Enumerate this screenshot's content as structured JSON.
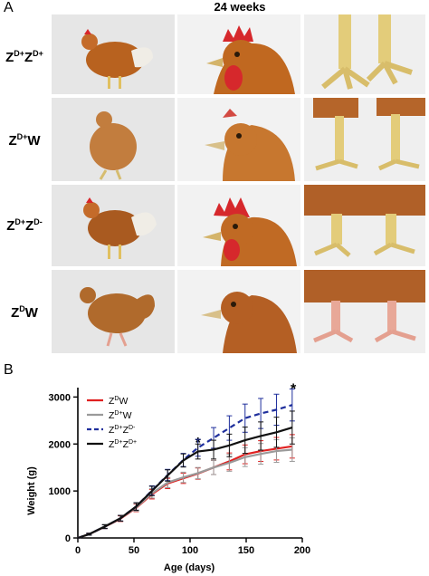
{
  "panel_a": {
    "letter": "A",
    "column_header": "24 weeks",
    "rows": [
      {
        "base": "Z",
        "sup1": "D+",
        "base2": "Z",
        "sup2": "D+"
      },
      {
        "base": "Z",
        "sup1": "D+",
        "base2": "W",
        "sup2": ""
      },
      {
        "base": "Z",
        "sup1": "D+",
        "base2": "Z",
        "sup2": "D-"
      },
      {
        "base": "Z",
        "sup1": "D",
        "base2": "W",
        "sup2": ""
      }
    ]
  },
  "panel_b": {
    "letter": "B"
  },
  "chart_data": {
    "type": "line",
    "xlabel": "Age (days)",
    "ylabel": "Weight (g)",
    "xlim": [
      0,
      200
    ],
    "ylim": [
      0,
      3200
    ],
    "xticks": [
      "0",
      "50",
      "100",
      "150",
      "200"
    ],
    "yticks": [
      "0",
      "1000",
      "2000",
      "3000"
    ],
    "legend_position": "top-left",
    "annotations": [
      {
        "text": "*",
        "x": 107,
        "y": 2080
      },
      {
        "text": "*",
        "x": 192,
        "y": 3230
      }
    ],
    "x": [
      0,
      10,
      24,
      38,
      52,
      66,
      80,
      94,
      107,
      121,
      135,
      149,
      163,
      177,
      191
    ],
    "series": [
      {
        "name": "Z",
        "legend_sup": "D",
        "legend_suffix": "W",
        "color": "#e02020",
        "dash": "solid",
        "values": [
          0,
          80,
          240,
          410,
          640,
          930,
          1160,
          1270,
          1370,
          1500,
          1630,
          1780,
          1850,
          1900,
          1950
        ],
        "errors": [
          0,
          20,
          40,
          60,
          80,
          100,
          110,
          110,
          120,
          150,
          180,
          200,
          220,
          240,
          250
        ]
      },
      {
        "name": "Z",
        "legend_sup": "D+",
        "legend_suffix": "W",
        "color": "#9a9a9a",
        "dash": "solid",
        "values": [
          0,
          80,
          250,
          420,
          650,
          950,
          1180,
          1290,
          1380,
          1500,
          1600,
          1720,
          1790,
          1850,
          1880
        ],
        "errors": [
          0,
          20,
          40,
          60,
          80,
          100,
          110,
          110,
          120,
          150,
          180,
          200,
          220,
          240,
          250
        ]
      },
      {
        "name": "Z",
        "legend_sup": "D+",
        "legend_suffix": "Z",
        "legend_sup2": "D-",
        "color": "#1f2f9c",
        "dash": "dashed",
        "values": [
          0,
          80,
          240,
          420,
          670,
          1010,
          1340,
          1660,
          1920,
          2130,
          2340,
          2550,
          2650,
          2730,
          2830
        ],
        "errors": [
          0,
          20,
          40,
          60,
          80,
          100,
          120,
          140,
          180,
          220,
          260,
          300,
          320,
          330,
          340
        ]
      },
      {
        "name": "Z",
        "legend_sup": "D+",
        "legend_suffix": "Z",
        "legend_sup2": "D+",
        "color": "#111111",
        "dash": "solid",
        "values": [
          0,
          80,
          240,
          420,
          670,
          1000,
          1330,
          1650,
          1840,
          1880,
          1970,
          2080,
          2170,
          2250,
          2350
        ],
        "errors": [
          0,
          20,
          40,
          60,
          80,
          100,
          120,
          140,
          160,
          200,
          240,
          280,
          300,
          320,
          350
        ]
      }
    ]
  }
}
